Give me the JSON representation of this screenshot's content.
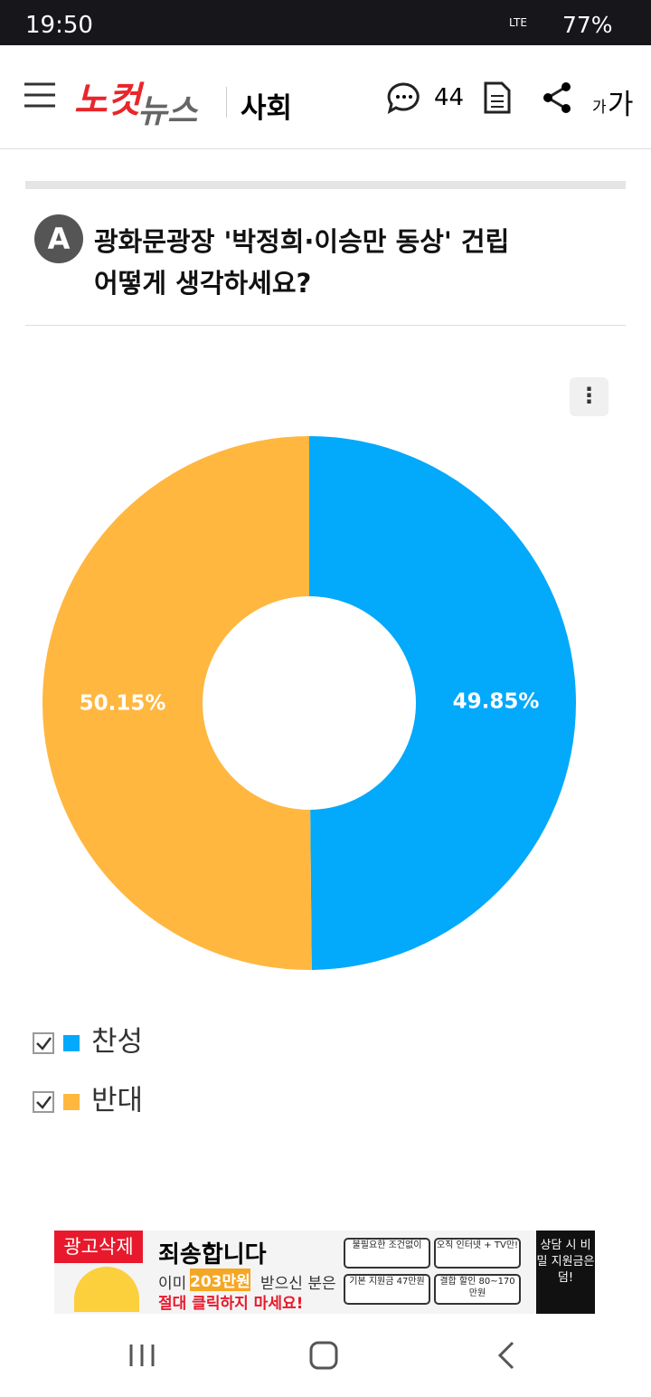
{
  "status_bar": {
    "time": "19:50",
    "network": "LTE",
    "battery": "77%"
  },
  "header": {
    "logo_red": "노컷",
    "logo_gray": "뉴스",
    "section": "사회",
    "comment_count": "44",
    "font_small": "가",
    "font_large": "가"
  },
  "poll": {
    "badge": "A",
    "question_line1": "광화문광장 '박정희·이승만 동상' 건립",
    "question_line2": "어떻게 생각하세요?"
  },
  "chart_data": {
    "type": "pie",
    "categories": [
      "찬성",
      "반대"
    ],
    "values": [
      49.85,
      50.15
    ],
    "value_labels": [
      "49.85%",
      "50.15%"
    ],
    "colors": [
      "#03a9fb",
      "#ffb740"
    ],
    "donut": true,
    "legend": "bottom-left"
  },
  "ad": {
    "remove": "광고삭제",
    "title": "죄송합니다",
    "line_prefix": "이미",
    "line_amount": "203만원",
    "line_suffix": "받으신 분은",
    "warning": "절대 클릭하지 마세요!",
    "box1": "불필요한 조건없이",
    "box2": "오직 인터넷 + TV만!",
    "box3": "기본 지원금 47만원",
    "box4": "결합 할인 80~170만원",
    "side": "상담 시 비밀 지원금은 덤!"
  }
}
